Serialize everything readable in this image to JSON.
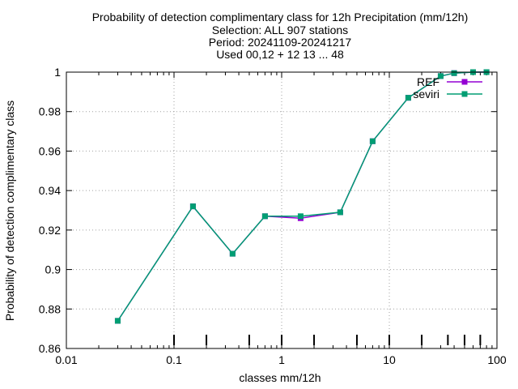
{
  "chart_data": {
    "type": "line",
    "title_lines": [
      "Probability of detection complimentary class  for 12h Precipitation (mm/12h)",
      "Selection: ALL    907 stations",
      "Period: 20241109-20241217",
      "Used 00,12 + 12 13 ... 48"
    ],
    "xlabel": "classes mm/12h",
    "ylabel": "Probability of detection complimentary class",
    "xscale": "log",
    "xlim": [
      0.01,
      100
    ],
    "ylim": [
      0.86,
      1.0
    ],
    "xticks": [
      {
        "value": 0.01,
        "label": "0.01"
      },
      {
        "value": 0.1,
        "label": "0.1"
      },
      {
        "value": 1,
        "label": "1"
      },
      {
        "value": 10,
        "label": "10"
      },
      {
        "value": 100,
        "label": "100"
      }
    ],
    "yticks": [
      {
        "value": 0.86,
        "label": "0.86"
      },
      {
        "value": 0.88,
        "label": "0.88"
      },
      {
        "value": 0.9,
        "label": "0.9"
      },
      {
        "value": 0.92,
        "label": "0.92"
      },
      {
        "value": 0.94,
        "label": "0.94"
      },
      {
        "value": 0.96,
        "label": "0.96"
      },
      {
        "value": 0.98,
        "label": "0.98"
      },
      {
        "value": 1.0,
        "label": "1"
      }
    ],
    "grid": true,
    "legend_position": "top-right",
    "series": [
      {
        "name": "REF",
        "color": "#9400d3",
        "x": [
          0.03,
          0.15,
          0.35,
          0.7,
          1.5,
          3.5,
          7,
          15,
          30,
          40,
          60,
          80
        ],
        "y": [
          0.874,
          0.932,
          0.908,
          0.927,
          0.926,
          0.929,
          0.965,
          0.987,
          0.998,
          0.9995,
          1.0,
          1.0
        ]
      },
      {
        "name": "seviri",
        "color": "#009e73",
        "x": [
          0.03,
          0.15,
          0.35,
          0.7,
          1.5,
          3.5,
          7,
          15,
          30,
          40,
          60,
          80
        ],
        "y": [
          0.874,
          0.932,
          0.908,
          0.927,
          0.927,
          0.929,
          0.965,
          0.987,
          0.998,
          0.9995,
          1.0,
          1.0
        ]
      }
    ],
    "class_markers": [
      0.1,
      0.2,
      0.5,
      1,
      2,
      5,
      10,
      20,
      35,
      50,
      70
    ]
  }
}
